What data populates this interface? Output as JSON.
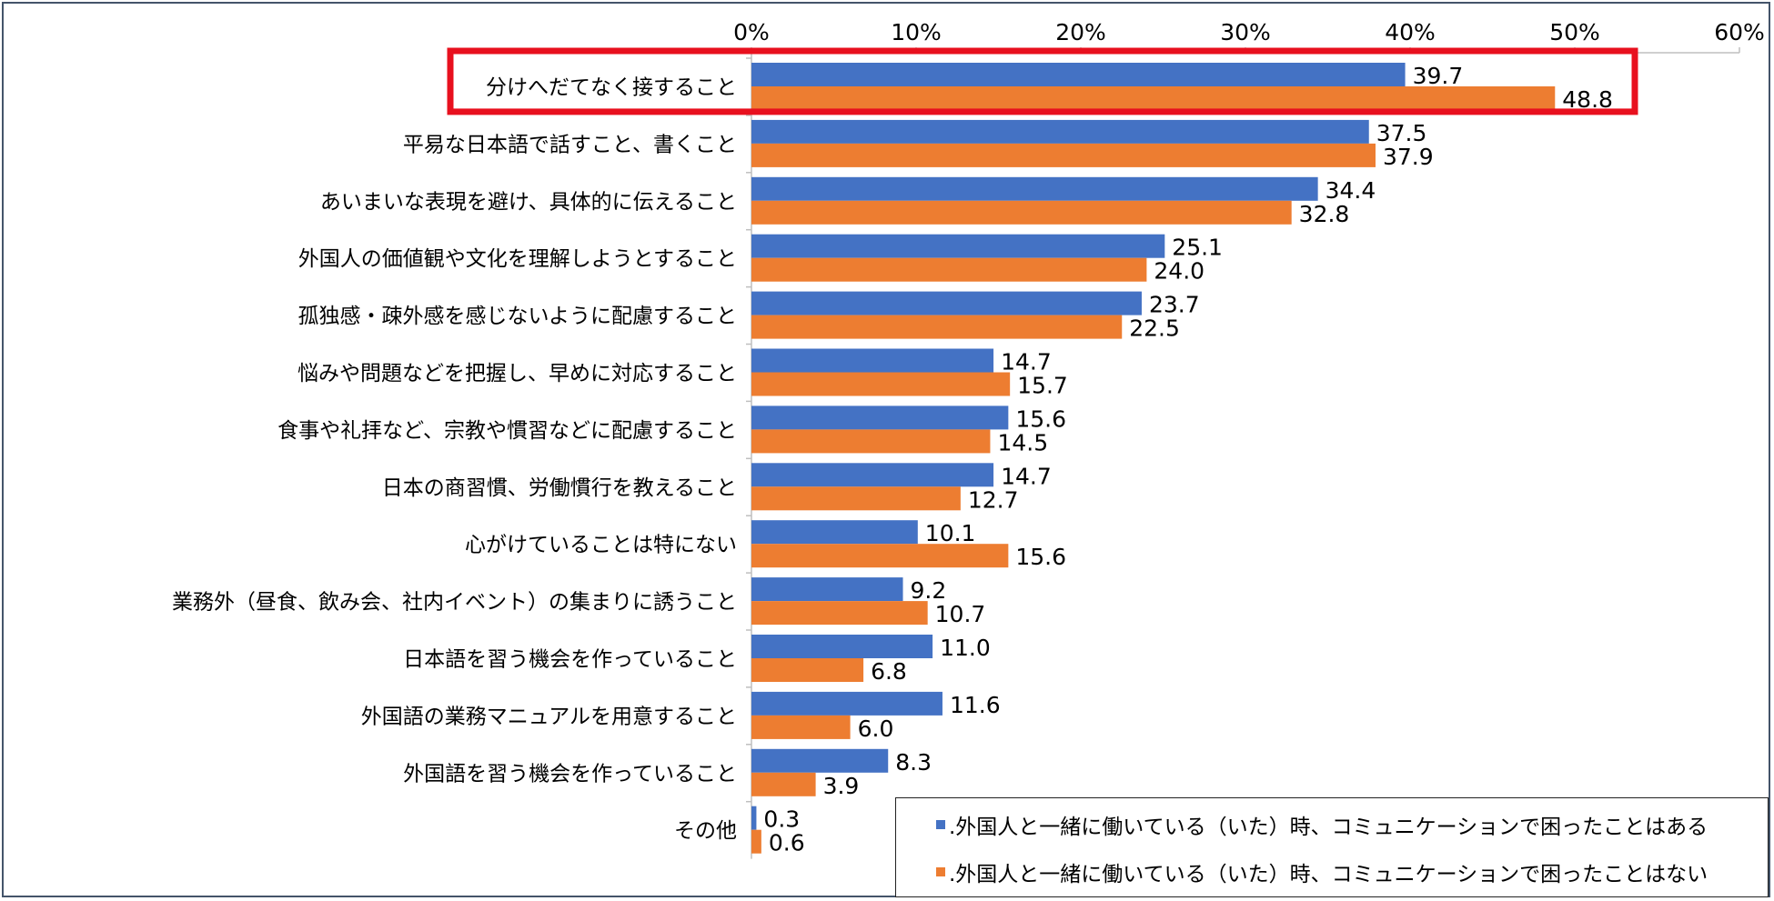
{
  "chart_data": {
    "type": "bar",
    "orientation": "horizontal",
    "xlim": [
      0,
      60
    ],
    "ticks": [
      "0%",
      "10%",
      "20%",
      "30%",
      "40%",
      "50%",
      "60%"
    ],
    "categories": [
      "分けへだてなく接すること",
      "平易な日本語で話すこと、書くこと",
      "あいまいな表現を避け、具体的に伝えること",
      "外国人の価値観や文化を理解しようとすること",
      "孤独感・疎外感を感じないように配慮すること",
      "悩みや問題などを把握し、早めに対応すること",
      "食事や礼拝など、宗教や慣習などに配慮すること",
      "日本の商習慣、労働慣行を教えること",
      "心がけていることは特にない",
      "業務外（昼食、飲み会、社内イベント）の集まりに誘うこと",
      "日本語を習う機会を作っていること",
      "外国語の業務マニュアルを用意すること",
      "外国語を習う機会を作っていること",
      "その他"
    ],
    "series": [
      {
        "name": ".外国人と一緒に働いている（いた）時、コミュニケーションで困ったことはある",
        "color": "#4472c4",
        "values": [
          39.7,
          37.5,
          34.4,
          25.1,
          23.7,
          14.7,
          15.6,
          14.7,
          10.1,
          9.2,
          11.0,
          11.6,
          8.3,
          0.3
        ]
      },
      {
        "name": ".外国人と一緒に働いている（いた）時、コミュニケーションで困ったことはない",
        "color": "#ed7d31",
        "values": [
          48.8,
          37.9,
          32.8,
          24.0,
          22.5,
          15.7,
          14.5,
          12.7,
          15.6,
          10.7,
          6.8,
          6.0,
          3.9,
          0.6
        ]
      }
    ],
    "highlight_index": 0,
    "highlight_color": "#e8101e",
    "legend_position": "bottom-right"
  }
}
